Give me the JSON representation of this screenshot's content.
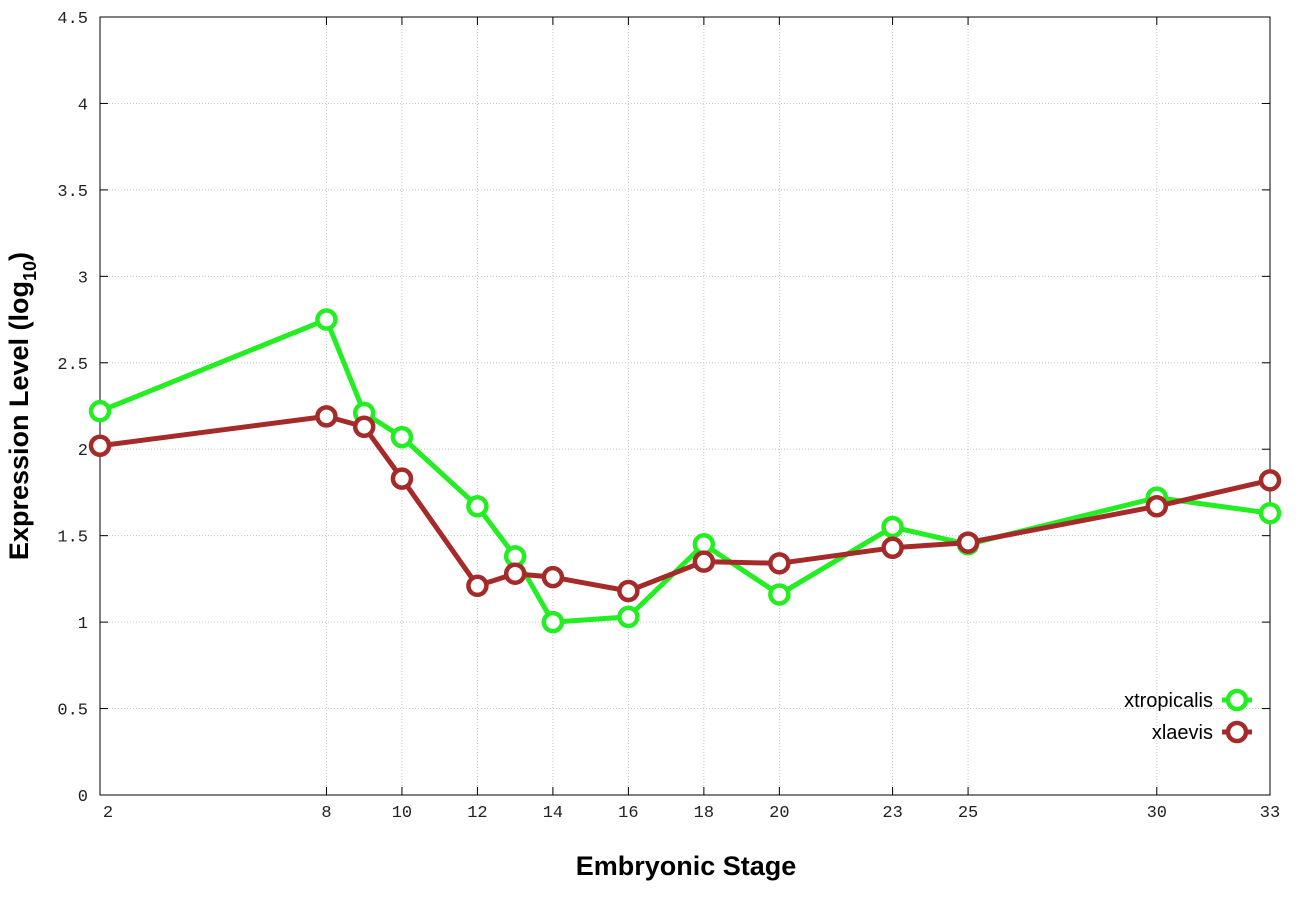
{
  "chart_data": {
    "type": "line",
    "title": "",
    "xlabel": "Embryonic Stage",
    "ylabel_parts": [
      "Expression Level (log",
      "10",
      ")"
    ],
    "xlim": [
      2,
      33
    ],
    "ylim": [
      0,
      4.5
    ],
    "grid": true,
    "legend_placement": "bottom-right",
    "x_ticks": [
      2,
      8,
      10,
      12,
      14,
      16,
      18,
      20,
      23,
      25,
      30,
      33
    ],
    "y_ticks": [
      "0",
      "0.5",
      "1",
      "1.5",
      "2",
      "2.5",
      "3",
      "3.5",
      "4",
      "4.5"
    ],
    "x": [
      2,
      8,
      9,
      10,
      12,
      13,
      14,
      16,
      18,
      20,
      23,
      25,
      30,
      33
    ],
    "series": [
      {
        "name": "xtropicalis",
        "color": "#22ee22",
        "values": [
          2.22,
          2.75,
          2.21,
          2.07,
          1.67,
          1.38,
          1.0,
          1.03,
          1.45,
          1.16,
          1.55,
          1.45,
          1.72,
          1.63
        ]
      },
      {
        "name": "xlaevis",
        "color": "#a52a2a",
        "values": [
          2.02,
          2.19,
          2.13,
          1.83,
          1.21,
          1.28,
          1.26,
          1.18,
          1.35,
          1.34,
          1.43,
          1.46,
          1.67,
          1.82
        ]
      }
    ]
  }
}
